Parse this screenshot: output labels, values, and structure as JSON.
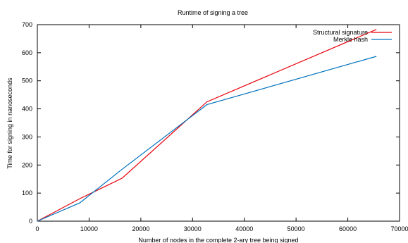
{
  "chart_data": {
    "type": "line",
    "title": "Runtime of signing a tree",
    "xlabel": "Number of nodes in the complete 2-ary tree being signed",
    "ylabel": "Time for signing in nanoseconds",
    "xlim": [
      0,
      70000
    ],
    "ylim": [
      0,
      700
    ],
    "xticks": [
      0,
      10000,
      20000,
      30000,
      40000,
      50000,
      60000,
      70000
    ],
    "yticks": [
      0,
      100,
      200,
      300,
      400,
      500,
      600,
      700
    ],
    "grid": false,
    "legend_position": "top-right",
    "series": [
      {
        "name": "Structural signature",
        "color": "#e8000b",
        "x": [
          0,
          8192,
          16384,
          32768,
          65536
        ],
        "y": [
          0,
          80,
          153,
          425,
          683
        ]
      },
      {
        "name": "Merkle hash",
        "color": "#0072bd",
        "x": [
          0,
          8192,
          16384,
          32768,
          65536
        ],
        "y": [
          0,
          65,
          185,
          415,
          587
        ]
      }
    ]
  }
}
